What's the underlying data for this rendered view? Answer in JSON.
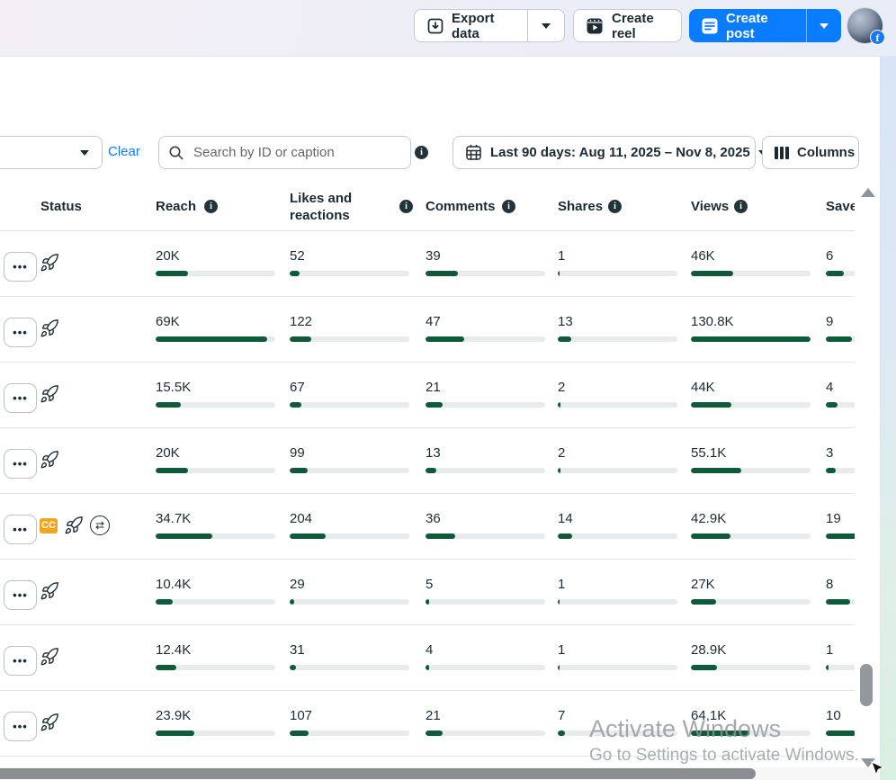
{
  "topbar": {
    "export_button": "Export data",
    "create_reel_button": "Create reel",
    "create_post_button": "Create post"
  },
  "filter_bar": {
    "clear_link": "Clear",
    "search_placeholder": "Search by ID or caption",
    "date_range_button": "Last 90 days: Aug 11, 2025 – Nov 8, 2025",
    "columns_button": "Columns"
  },
  "table": {
    "headers": {
      "status": "Status",
      "reach": "Reach",
      "likes": "Likes and reactions",
      "comments": "Comments",
      "shares": "Shares",
      "views": "Views",
      "saves": "Saves"
    },
    "metric_order": [
      "reach",
      "likes",
      "comments",
      "shares",
      "views",
      "saves"
    ],
    "rows": [
      {
        "status_icons": [
          "boost"
        ],
        "metrics": {
          "reach": {
            "value": "20K",
            "pct": 27
          },
          "likes": {
            "value": "52",
            "pct": 8
          },
          "comments": {
            "value": "39",
            "pct": 27
          },
          "shares": {
            "value": "1",
            "pct": 1
          },
          "views": {
            "value": "46K",
            "pct": 35
          },
          "saves": {
            "value": "6",
            "pct": 15
          }
        }
      },
      {
        "status_icons": [
          "boost"
        ],
        "metrics": {
          "reach": {
            "value": "69K",
            "pct": 93
          },
          "likes": {
            "value": "122",
            "pct": 18
          },
          "comments": {
            "value": "47",
            "pct": 32
          },
          "shares": {
            "value": "13",
            "pct": 11
          },
          "views": {
            "value": "130.8K",
            "pct": 100
          },
          "saves": {
            "value": "9",
            "pct": 22
          }
        }
      },
      {
        "status_icons": [
          "boost"
        ],
        "metrics": {
          "reach": {
            "value": "15.5K",
            "pct": 21
          },
          "likes": {
            "value": "67",
            "pct": 10
          },
          "comments": {
            "value": "21",
            "pct": 14
          },
          "shares": {
            "value": "2",
            "pct": 2
          },
          "views": {
            "value": "44K",
            "pct": 34
          },
          "saves": {
            "value": "4",
            "pct": 10
          }
        }
      },
      {
        "status_icons": [
          "boost"
        ],
        "metrics": {
          "reach": {
            "value": "20K",
            "pct": 27
          },
          "likes": {
            "value": "99",
            "pct": 15
          },
          "comments": {
            "value": "13",
            "pct": 9
          },
          "shares": {
            "value": "2",
            "pct": 2
          },
          "views": {
            "value": "55.1K",
            "pct": 42
          },
          "saves": {
            "value": "3",
            "pct": 8
          }
        }
      },
      {
        "status_icons": [
          "cc",
          "boost",
          "swap"
        ],
        "metrics": {
          "reach": {
            "value": "34.7K",
            "pct": 47
          },
          "likes": {
            "value": "204",
            "pct": 30
          },
          "comments": {
            "value": "36",
            "pct": 25
          },
          "shares": {
            "value": "14",
            "pct": 12
          },
          "views": {
            "value": "42.9K",
            "pct": 33
          },
          "saves": {
            "value": "19",
            "pct": 48
          }
        }
      },
      {
        "status_icons": [
          "boost"
        ],
        "metrics": {
          "reach": {
            "value": "10.4K",
            "pct": 14
          },
          "likes": {
            "value": "29",
            "pct": 4
          },
          "comments": {
            "value": "5",
            "pct": 3
          },
          "shares": {
            "value": "1",
            "pct": 1
          },
          "views": {
            "value": "27K",
            "pct": 21
          },
          "saves": {
            "value": "8",
            "pct": 20
          }
        }
      },
      {
        "status_icons": [
          "boost"
        ],
        "metrics": {
          "reach": {
            "value": "12.4K",
            "pct": 17
          },
          "likes": {
            "value": "31",
            "pct": 5
          },
          "comments": {
            "value": "4",
            "pct": 3
          },
          "shares": {
            "value": "1",
            "pct": 1
          },
          "views": {
            "value": "28.9K",
            "pct": 22
          },
          "saves": {
            "value": "1",
            "pct": 2
          }
        }
      },
      {
        "status_icons": [
          "boost"
        ],
        "metrics": {
          "reach": {
            "value": "23.9K",
            "pct": 32
          },
          "likes": {
            "value": "107",
            "pct": 16
          },
          "comments": {
            "value": "21",
            "pct": 14
          },
          "shares": {
            "value": "7",
            "pct": 6
          },
          "views": {
            "value": "64.1K",
            "pct": 49
          },
          "saves": {
            "value": "10",
            "pct": 25
          }
        }
      }
    ],
    "cc_badge_label": "CC"
  },
  "watermark": {
    "line1": "Activate Windows",
    "line2": "Go to Settings to activate Windows."
  },
  "colors": {
    "accent_blue": "#0a7cff",
    "bar_green": "#0e5a3a",
    "cc_badge_orange": "#f5a51d"
  }
}
